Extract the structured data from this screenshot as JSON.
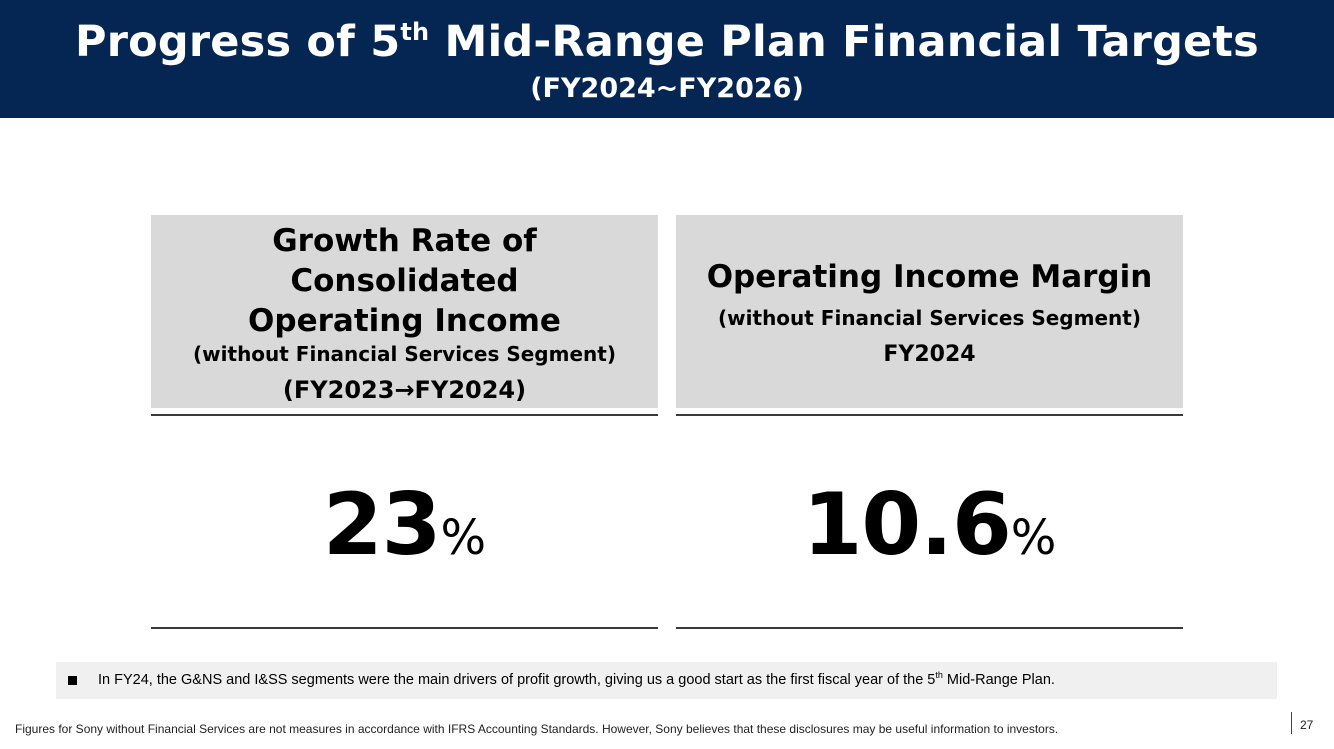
{
  "header": {
    "title_part1": "Progress of 5",
    "title_sup": "th",
    "title_part2": " Mid-Range Plan Financial Targets",
    "subtitle": "(FY2024~FY2026)",
    "background_color": "#052653"
  },
  "cards": [
    {
      "heading_lines": [
        "Growth Rate of",
        "Consolidated",
        "Operating Income"
      ],
      "qualifier": "(without Financial Services Segment)",
      "period": "(FY2023→FY2024)",
      "value": "23",
      "unit": "%"
    },
    {
      "heading_lines": [
        "Operating Income Margin"
      ],
      "qualifier": "(without Financial Services Segment)",
      "period": "FY2024",
      "value": "10.6",
      "unit": "%"
    }
  ],
  "note": {
    "text_part1": "In FY24, the G&NS and I&SS segments were the main drivers of profit growth, giving us a good start as the first fiscal year of the 5",
    "text_sup": "th",
    "text_part2": " Mid-Range Plan."
  },
  "footer": {
    "disclaimer": "Figures for Sony without Financial Services are not measures in accordance with IFRS Accounting Standards. However, Sony believes that these disclosures may be useful information to investors.",
    "page_number": "27"
  }
}
